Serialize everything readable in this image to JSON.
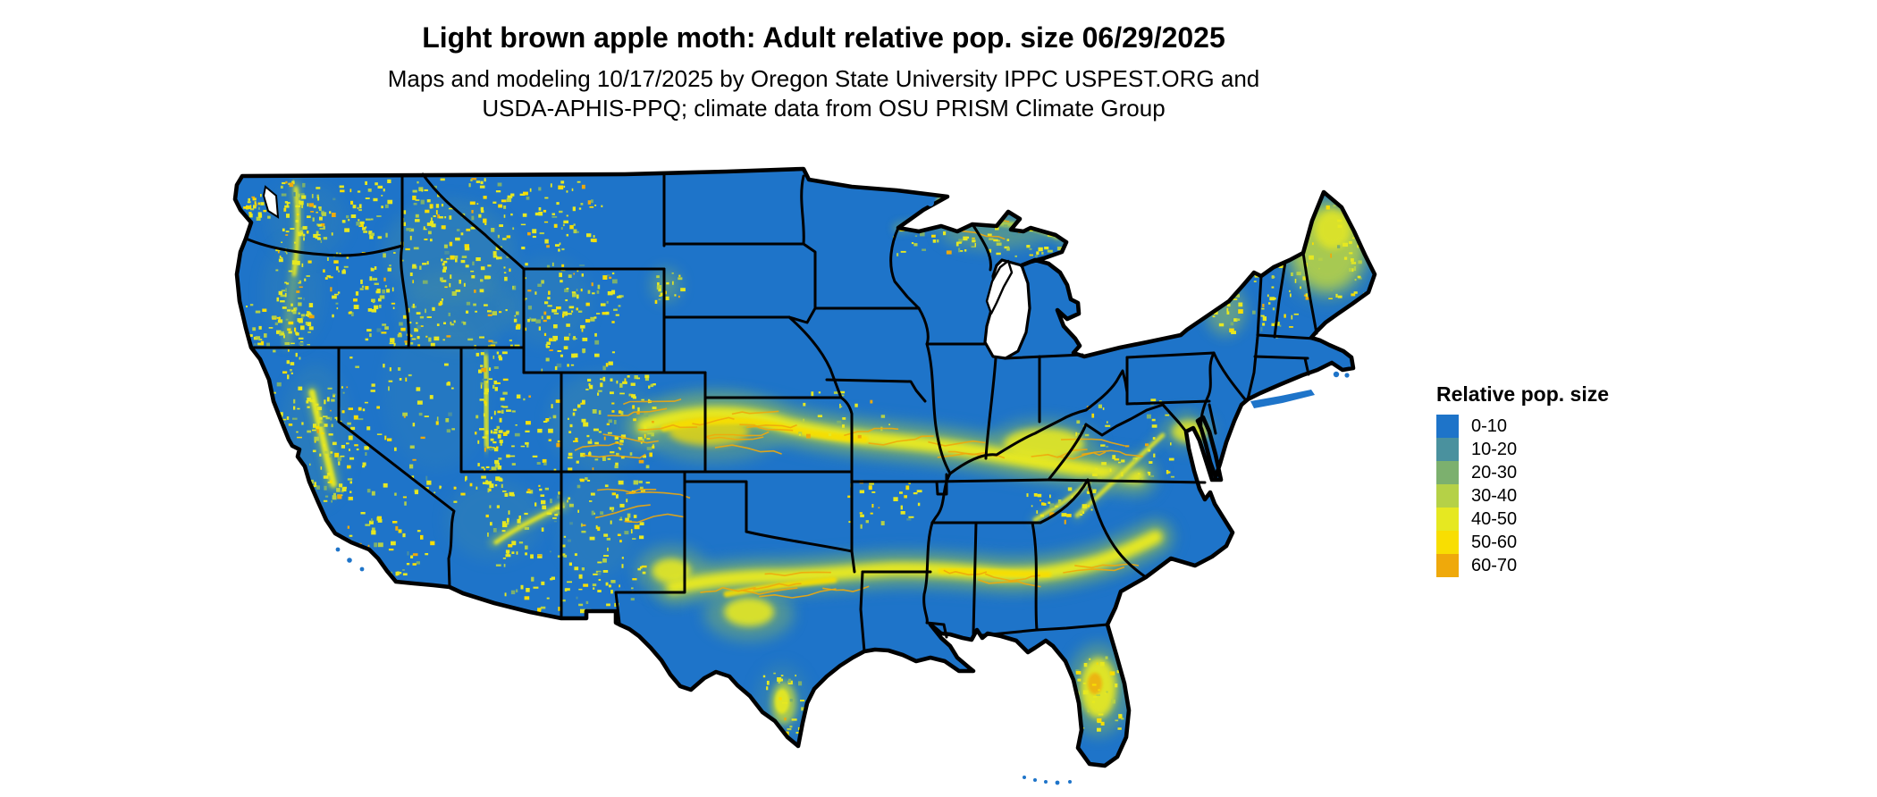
{
  "title": "Light brown apple moth: Adult relative pop. size 06/29/2025",
  "subtitle": {
    "line1": "Maps and modeling 10/17/2025 by Oregon State University IPPC USPEST.ORG and",
    "line2": "USDA-APHIS-PPQ; climate data from OSU PRISM Climate Group"
  },
  "legend": {
    "title": "Relative pop. size",
    "items": [
      {
        "label": "0-10",
        "color": "#1E74C9"
      },
      {
        "label": "10-20",
        "color": "#4A919E"
      },
      {
        "label": "20-30",
        "color": "#7CB06E"
      },
      {
        "label": "30-40",
        "color": "#B5D147"
      },
      {
        "label": "40-50",
        "color": "#E6E821"
      },
      {
        "label": "50-60",
        "color": "#F8DE02"
      },
      {
        "label": "60-70",
        "color": "#EFA90B"
      }
    ]
  },
  "map": {
    "land_color": "#1E74C9",
    "water_color": "#FFFFFF",
    "border_color": "#000000"
  }
}
